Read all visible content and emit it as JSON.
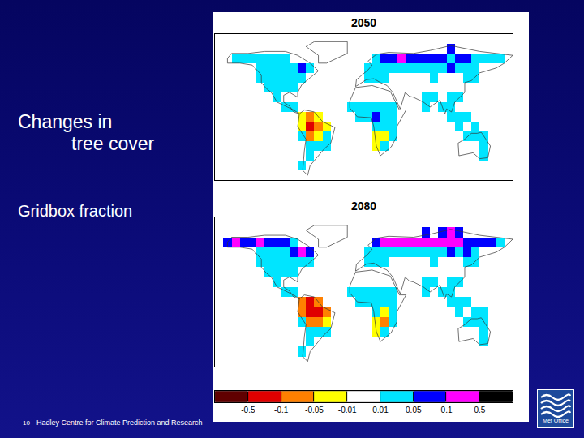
{
  "slide": {
    "title_lines": [
      "Changes in",
      "tree cover"
    ],
    "subtitle": "Gridbox fraction",
    "page_number": "10",
    "footer": "Hadley Centre for Climate Prediction and Research",
    "logo": "Met Office"
  },
  "colorbar": {
    "bounds": [
      -0.5,
      -0.1,
      -0.05,
      -0.01,
      0.01,
      0.05,
      0.1,
      0.5
    ],
    "colors": [
      "#600000",
      "#e00000",
      "#ff8000",
      "#ffff00",
      "#ffffff",
      "#00e5ff",
      "#0000ff",
      "#ff00ff",
      "#000000"
    ],
    "zlim": [
      -1,
      1
    ]
  },
  "chart_data": [
    {
      "type": "heatmap",
      "title": "2050",
      "xlim": [
        -180,
        180
      ],
      "ylim": [
        -60,
        90
      ],
      "tick_labels": false,
      "lon": [
        -175,
        -165,
        -155,
        -145,
        -135,
        -125,
        -115,
        -105,
        -95,
        -85,
        -75,
        -65,
        -55,
        -45,
        -35,
        -25,
        -15,
        -5,
        5,
        15,
        25,
        35,
        45,
        55,
        65,
        75,
        85,
        95,
        105,
        115,
        125,
        135,
        145,
        155,
        165,
        175
      ],
      "lat": [
        -55,
        -45,
        -35,
        -25,
        -15,
        -5,
        5,
        15,
        25,
        35,
        45,
        55,
        65,
        75,
        85
      ],
      "cells": [
        [
          -155,
          65,
          0.03
        ],
        [
          -145,
          65,
          0.03
        ],
        [
          -135,
          65,
          0.02
        ],
        [
          -125,
          65,
          0.03
        ],
        [
          -115,
          65,
          0.03
        ],
        [
          -105,
          65,
          0.02
        ],
        [
          -95,
          65,
          0.02
        ],
        [
          -125,
          55,
          0.03
        ],
        [
          -115,
          55,
          0.02
        ],
        [
          -105,
          55,
          0.04
        ],
        [
          -95,
          55,
          0.03
        ],
        [
          -85,
          55,
          0.03
        ],
        [
          -75,
          55,
          0.06
        ],
        [
          -65,
          55,
          0.03
        ],
        [
          -125,
          45,
          0.02
        ],
        [
          -115,
          45,
          0.03
        ],
        [
          -105,
          45,
          0.02
        ],
        [
          -95,
          45,
          0.03
        ],
        [
          -85,
          45,
          0.02
        ],
        [
          -75,
          45,
          0.03
        ],
        [
          -115,
          35,
          0.03
        ],
        [
          -105,
          35,
          0.02
        ],
        [
          -95,
          35,
          0.03
        ],
        [
          -85,
          35,
          0.02
        ],
        [
          -105,
          25,
          0.02
        ],
        [
          -95,
          15,
          0.02
        ],
        [
          -85,
          15,
          0.03
        ],
        [
          -75,
          5,
          -0.03
        ],
        [
          -65,
          5,
          -0.06
        ],
        [
          -55,
          5,
          -0.05
        ],
        [
          -75,
          -5,
          -0.04
        ],
        [
          -65,
          -5,
          -0.12
        ],
        [
          -55,
          -5,
          -0.07
        ],
        [
          -45,
          -5,
          -0.03
        ],
        [
          -75,
          -15,
          0.03
        ],
        [
          -65,
          -15,
          -0.06
        ],
        [
          -55,
          -15,
          -0.04
        ],
        [
          -45,
          -15,
          0.03
        ],
        [
          -65,
          -25,
          0.02
        ],
        [
          -55,
          -25,
          0.03
        ],
        [
          -45,
          -25,
          0.02
        ],
        [
          -65,
          -35,
          0.02
        ],
        [
          -75,
          -45,
          0.03
        ],
        [
          -15,
          15,
          0.02
        ],
        [
          -5,
          15,
          0.02
        ],
        [
          5,
          15,
          0.03
        ],
        [
          15,
          15,
          0.02
        ],
        [
          25,
          15,
          0.02
        ],
        [
          35,
          15,
          0.02
        ],
        [
          -5,
          5,
          0.03
        ],
        [
          5,
          5,
          0.04
        ],
        [
          15,
          5,
          0.06
        ],
        [
          25,
          5,
          0.03
        ],
        [
          35,
          5,
          0.02
        ],
        [
          15,
          -5,
          0.04
        ],
        [
          25,
          -5,
          0.03
        ],
        [
          35,
          -5,
          0.02
        ],
        [
          15,
          -15,
          -0.02
        ],
        [
          25,
          -15,
          -0.03
        ],
        [
          35,
          -15,
          0.03
        ],
        [
          15,
          -25,
          -0.03
        ],
        [
          25,
          -25,
          0.02
        ],
        [
          15,
          65,
          0.04
        ],
        [
          25,
          65,
          0.06
        ],
        [
          35,
          65,
          0.07
        ],
        [
          45,
          65,
          0.12
        ],
        [
          55,
          65,
          0.08
        ],
        [
          65,
          65,
          0.07
        ],
        [
          75,
          65,
          0.08
        ],
        [
          85,
          65,
          0.06
        ],
        [
          95,
          65,
          0.07
        ],
        [
          105,
          65,
          0.05
        ],
        [
          115,
          65,
          0.06
        ],
        [
          125,
          65,
          0.07
        ],
        [
          135,
          65,
          0.04
        ],
        [
          145,
          65,
          0.03
        ],
        [
          155,
          65,
          0.03
        ],
        [
          165,
          65,
          0.02
        ],
        [
          105,
          75,
          0.06
        ],
        [
          5,
          55,
          0.02
        ],
        [
          15,
          55,
          0.02
        ],
        [
          25,
          55,
          0.03
        ],
        [
          35,
          55,
          0.03
        ],
        [
          45,
          55,
          0.04
        ],
        [
          55,
          55,
          0.03
        ],
        [
          65,
          55,
          0.03
        ],
        [
          75,
          55,
          0.04
        ],
        [
          85,
          55,
          0.03
        ],
        [
          95,
          55,
          0.03
        ],
        [
          105,
          55,
          0.06
        ],
        [
          115,
          55,
          0.03
        ],
        [
          125,
          55,
          0.04
        ],
        [
          135,
          55,
          0.03
        ],
        [
          5,
          45,
          0.02
        ],
        [
          15,
          45,
          0.02
        ],
        [
          25,
          45,
          0.03
        ],
        [
          85,
          45,
          0.02
        ],
        [
          125,
          45,
          0.03
        ],
        [
          135,
          45,
          0.02
        ],
        [
          75,
          25,
          0.02
        ],
        [
          85,
          25,
          0.02
        ],
        [
          105,
          25,
          0.03
        ],
        [
          115,
          25,
          0.02
        ],
        [
          75,
          15,
          0.02
        ],
        [
          95,
          15,
          0.02
        ],
        [
          105,
          15,
          0.03
        ],
        [
          105,
          5,
          0.03
        ],
        [
          115,
          5,
          0.04
        ],
        [
          125,
          5,
          0.02
        ],
        [
          115,
          -5,
          0.03
        ],
        [
          135,
          -5,
          0.03
        ],
        [
          125,
          -15,
          0.02
        ],
        [
          135,
          -15,
          0.02
        ],
        [
          145,
          -15,
          0.03
        ],
        [
          145,
          -25,
          0.02
        ],
        [
          145,
          -35,
          0.02
        ]
      ]
    },
    {
      "type": "heatmap",
      "title": "2080",
      "xlim": [
        -180,
        180
      ],
      "ylim": [
        -60,
        90
      ],
      "tick_labels": false,
      "lon": [
        -175,
        -165,
        -155,
        -145,
        -135,
        -125,
        -115,
        -105,
        -95,
        -85,
        -75,
        -65,
        -55,
        -45,
        -35,
        -25,
        -15,
        -5,
        5,
        15,
        25,
        35,
        45,
        55,
        65,
        75,
        85,
        95,
        105,
        115,
        125,
        135,
        145,
        155,
        165,
        175
      ],
      "lat": [
        -55,
        -45,
        -35,
        -25,
        -15,
        -5,
        5,
        15,
        25,
        35,
        45,
        55,
        65,
        75,
        85
      ],
      "cells": [
        [
          -165,
          65,
          0.06
        ],
        [
          -155,
          65,
          0.12
        ],
        [
          -145,
          65,
          0.1
        ],
        [
          -135,
          65,
          0.07
        ],
        [
          -125,
          65,
          0.12
        ],
        [
          -115,
          65,
          0.1
        ],
        [
          -105,
          65,
          0.08
        ],
        [
          -95,
          65,
          0.07
        ],
        [
          -85,
          65,
          0.04
        ],
        [
          -125,
          55,
          0.04
        ],
        [
          -115,
          55,
          0.03
        ],
        [
          -105,
          55,
          0.03
        ],
        [
          -95,
          55,
          0.04
        ],
        [
          -85,
          55,
          0.06
        ],
        [
          -75,
          55,
          0.12
        ],
        [
          -65,
          55,
          0.07
        ],
        [
          -125,
          45,
          0.03
        ],
        [
          -115,
          45,
          0.02
        ],
        [
          -105,
          45,
          0.03
        ],
        [
          -95,
          45,
          0.03
        ],
        [
          -85,
          45,
          0.04
        ],
        [
          -75,
          45,
          0.03
        ],
        [
          -65,
          45,
          0.02
        ],
        [
          -115,
          35,
          0.02
        ],
        [
          -105,
          35,
          0.03
        ],
        [
          -95,
          35,
          0.04
        ],
        [
          -85,
          35,
          0.03
        ],
        [
          -105,
          25,
          0.03
        ],
        [
          -95,
          15,
          0.02
        ],
        [
          -85,
          15,
          0.02
        ],
        [
          -75,
          5,
          -0.06
        ],
        [
          -65,
          5,
          -0.12
        ],
        [
          -55,
          5,
          -0.08
        ],
        [
          -75,
          -5,
          -0.07
        ],
        [
          -65,
          -5,
          -0.2
        ],
        [
          -55,
          -5,
          -0.15
        ],
        [
          -45,
          -5,
          -0.06
        ],
        [
          -75,
          -15,
          0.03
        ],
        [
          -65,
          -15,
          -0.08
        ],
        [
          -55,
          -15,
          -0.06
        ],
        [
          -45,
          -15,
          -0.03
        ],
        [
          -65,
          -25,
          0.03
        ],
        [
          -55,
          -25,
          0.04
        ],
        [
          -45,
          -25,
          0.03
        ],
        [
          -65,
          -35,
          0.02
        ],
        [
          -75,
          -45,
          0.04
        ],
        [
          -15,
          15,
          0.03
        ],
        [
          -5,
          15,
          0.03
        ],
        [
          5,
          15,
          0.02
        ],
        [
          15,
          15,
          0.03
        ],
        [
          25,
          15,
          0.02
        ],
        [
          35,
          15,
          0.02
        ],
        [
          -5,
          5,
          0.04
        ],
        [
          5,
          5,
          0.03
        ],
        [
          15,
          5,
          0.04
        ],
        [
          25,
          5,
          0.03
        ],
        [
          35,
          5,
          0.02
        ],
        [
          15,
          -5,
          0.03
        ],
        [
          25,
          -5,
          -0.02
        ],
        [
          35,
          -5,
          0.02
        ],
        [
          15,
          -15,
          -0.04
        ],
        [
          25,
          -15,
          -0.06
        ],
        [
          35,
          -15,
          0.03
        ],
        [
          15,
          -25,
          -0.03
        ],
        [
          25,
          -25,
          0.03
        ],
        [
          15,
          65,
          0.06
        ],
        [
          25,
          65,
          0.12
        ],
        [
          35,
          65,
          0.14
        ],
        [
          45,
          65,
          0.2
        ],
        [
          55,
          65,
          0.15
        ],
        [
          65,
          65,
          0.12
        ],
        [
          75,
          65,
          0.14
        ],
        [
          85,
          65,
          0.12
        ],
        [
          95,
          65,
          0.15
        ],
        [
          105,
          65,
          0.12
        ],
        [
          115,
          65,
          0.14
        ],
        [
          125,
          65,
          0.1
        ],
        [
          135,
          65,
          0.08
        ],
        [
          145,
          65,
          0.06
        ],
        [
          155,
          65,
          0.06
        ],
        [
          165,
          65,
          0.03
        ],
        [
          75,
          75,
          0.06
        ],
        [
          95,
          75,
          0.08
        ],
        [
          105,
          75,
          0.12
        ],
        [
          115,
          75,
          0.06
        ],
        [
          5,
          55,
          0.03
        ],
        [
          15,
          55,
          0.03
        ],
        [
          25,
          55,
          0.04
        ],
        [
          35,
          55,
          0.04
        ],
        [
          45,
          55,
          0.03
        ],
        [
          55,
          55,
          0.04
        ],
        [
          65,
          55,
          0.03
        ],
        [
          75,
          55,
          0.03
        ],
        [
          85,
          55,
          0.04
        ],
        [
          95,
          55,
          0.04
        ],
        [
          105,
          55,
          0.08
        ],
        [
          115,
          55,
          0.04
        ],
        [
          125,
          55,
          0.06
        ],
        [
          135,
          55,
          0.04
        ],
        [
          5,
          45,
          0.02
        ],
        [
          15,
          45,
          0.03
        ],
        [
          25,
          45,
          0.03
        ],
        [
          85,
          45,
          0.02
        ],
        [
          125,
          45,
          0.04
        ],
        [
          135,
          45,
          0.03
        ],
        [
          75,
          25,
          0.02
        ],
        [
          85,
          25,
          0.03
        ],
        [
          105,
          25,
          0.04
        ],
        [
          115,
          25,
          0.03
        ],
        [
          75,
          15,
          0.03
        ],
        [
          95,
          15,
          0.02
        ],
        [
          105,
          15,
          0.04
        ],
        [
          105,
          5,
          0.04
        ],
        [
          115,
          5,
          0.03
        ],
        [
          125,
          5,
          0.02
        ],
        [
          115,
          -5,
          0.04
        ],
        [
          135,
          -5,
          0.02
        ],
        [
          145,
          -5,
          0.03
        ],
        [
          125,
          -15,
          0.03
        ],
        [
          135,
          -15,
          0.02
        ],
        [
          145,
          -15,
          0.04
        ],
        [
          145,
          -25,
          0.03
        ],
        [
          145,
          -35,
          0.02
        ]
      ]
    }
  ]
}
